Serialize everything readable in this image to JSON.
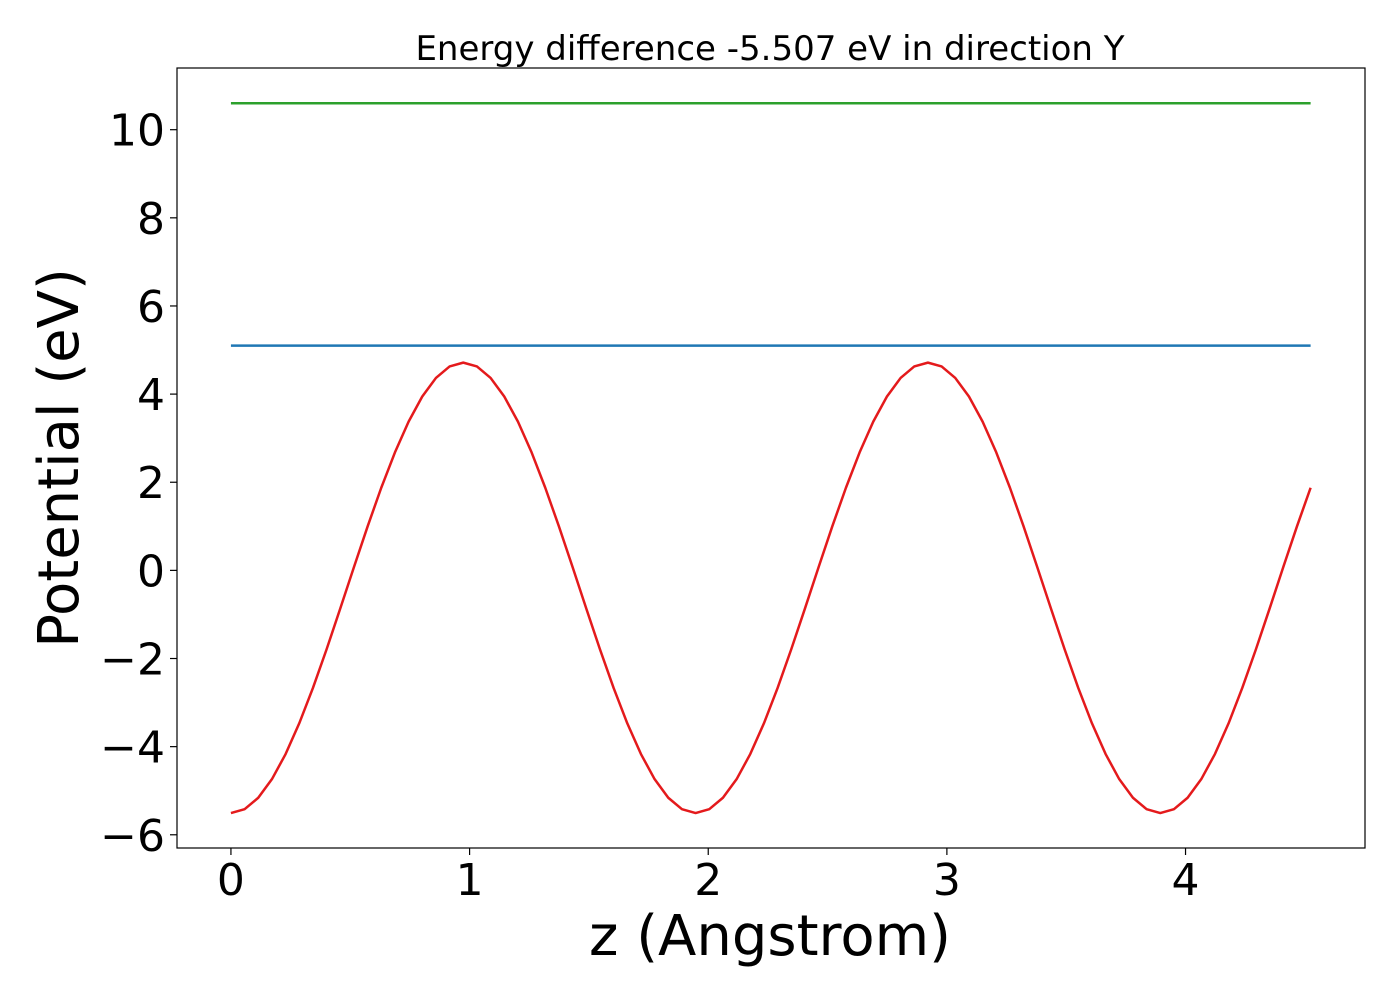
{
  "chart_data": {
    "type": "line",
    "title": "Energy difference -5.507 eV in direction Y",
    "xlabel": "z (Angstrom)",
    "ylabel": "Potential (eV)",
    "xlim": [
      -0.226,
      4.752
    ],
    "ylim": [
      -6.3,
      11.4
    ],
    "xticks": [
      0,
      1,
      2,
      3,
      4
    ],
    "yticks": [
      -6,
      -4,
      -2,
      0,
      2,
      4,
      6,
      8,
      10
    ],
    "xtick_labels": [
      "0",
      "1",
      "2",
      "3",
      "4"
    ],
    "ytick_labels": [
      "−6",
      "−4",
      "−2",
      "0",
      "2",
      "4",
      "6",
      "8",
      "10"
    ],
    "grid": false,
    "legend": "none",
    "series": [
      {
        "color": "#e41a1c",
        "x": [
          0.0,
          0.0573,
          0.1145,
          0.1718,
          0.2291,
          0.2863,
          0.3436,
          0.4009,
          0.4581,
          0.5154,
          0.5727,
          0.6299,
          0.6872,
          0.7445,
          0.8017,
          0.859,
          0.9163,
          0.9735,
          1.0308,
          1.0881,
          1.1453,
          1.2026,
          1.2599,
          1.3171,
          1.3744,
          1.4317,
          1.4889,
          1.5462,
          1.6035,
          1.6607,
          1.718,
          1.7753,
          1.8325,
          1.8898,
          1.9471,
          2.0043,
          2.0616,
          2.1189,
          2.1761,
          2.2334,
          2.2907,
          2.3479,
          2.4052,
          2.4625,
          2.5197,
          2.577,
          2.6343,
          2.6915,
          2.7488,
          2.8061,
          2.8633,
          2.9206,
          2.9779,
          3.0351,
          3.0924,
          3.1497,
          3.2069,
          3.2642,
          3.3215,
          3.3787,
          3.436,
          3.4933,
          3.5505,
          3.6078,
          3.6651,
          3.7223,
          3.7796,
          3.8369,
          3.8941,
          3.9514,
          4.0087,
          4.0659,
          4.1232,
          4.1805,
          4.2377,
          4.295,
          4.3523,
          4.4095,
          4.4668,
          4.5241
        ],
        "y": [
          -5.507,
          -5.42,
          -5.16,
          -4.738,
          -4.168,
          -3.47,
          -2.668,
          -1.79,
          -0.866,
          0.073,
          0.997,
          1.875,
          2.677,
          3.375,
          3.945,
          4.367,
          4.627,
          4.714,
          4.627,
          4.367,
          3.945,
          3.375,
          2.677,
          1.875,
          0.997,
          0.073,
          -0.866,
          -1.79,
          -2.668,
          -3.47,
          -4.168,
          -4.738,
          -5.16,
          -5.42,
          -5.507,
          -5.42,
          -5.16,
          -4.738,
          -4.168,
          -3.47,
          -2.668,
          -1.79,
          -0.866,
          0.073,
          0.997,
          1.875,
          2.677,
          3.375,
          3.945,
          4.367,
          4.627,
          4.714,
          4.627,
          4.367,
          3.945,
          3.375,
          2.677,
          1.875,
          0.997,
          0.073,
          -0.866,
          -1.79,
          -2.668,
          -3.47,
          -4.168,
          -4.738,
          -5.16,
          -5.42,
          -5.507,
          -5.42,
          -5.16,
          -4.738,
          -4.168,
          -3.47,
          -2.668,
          -1.79,
          -0.866,
          0.073,
          0.997,
          1.875
        ]
      },
      {
        "color": "#1f77b4",
        "x": [
          0.0,
          4.5241
        ],
        "y": [
          5.1,
          5.1
        ]
      },
      {
        "color": "#2ca02c",
        "x": [
          0.0,
          4.5241
        ],
        "y": [
          10.6,
          10.6
        ]
      }
    ]
  }
}
